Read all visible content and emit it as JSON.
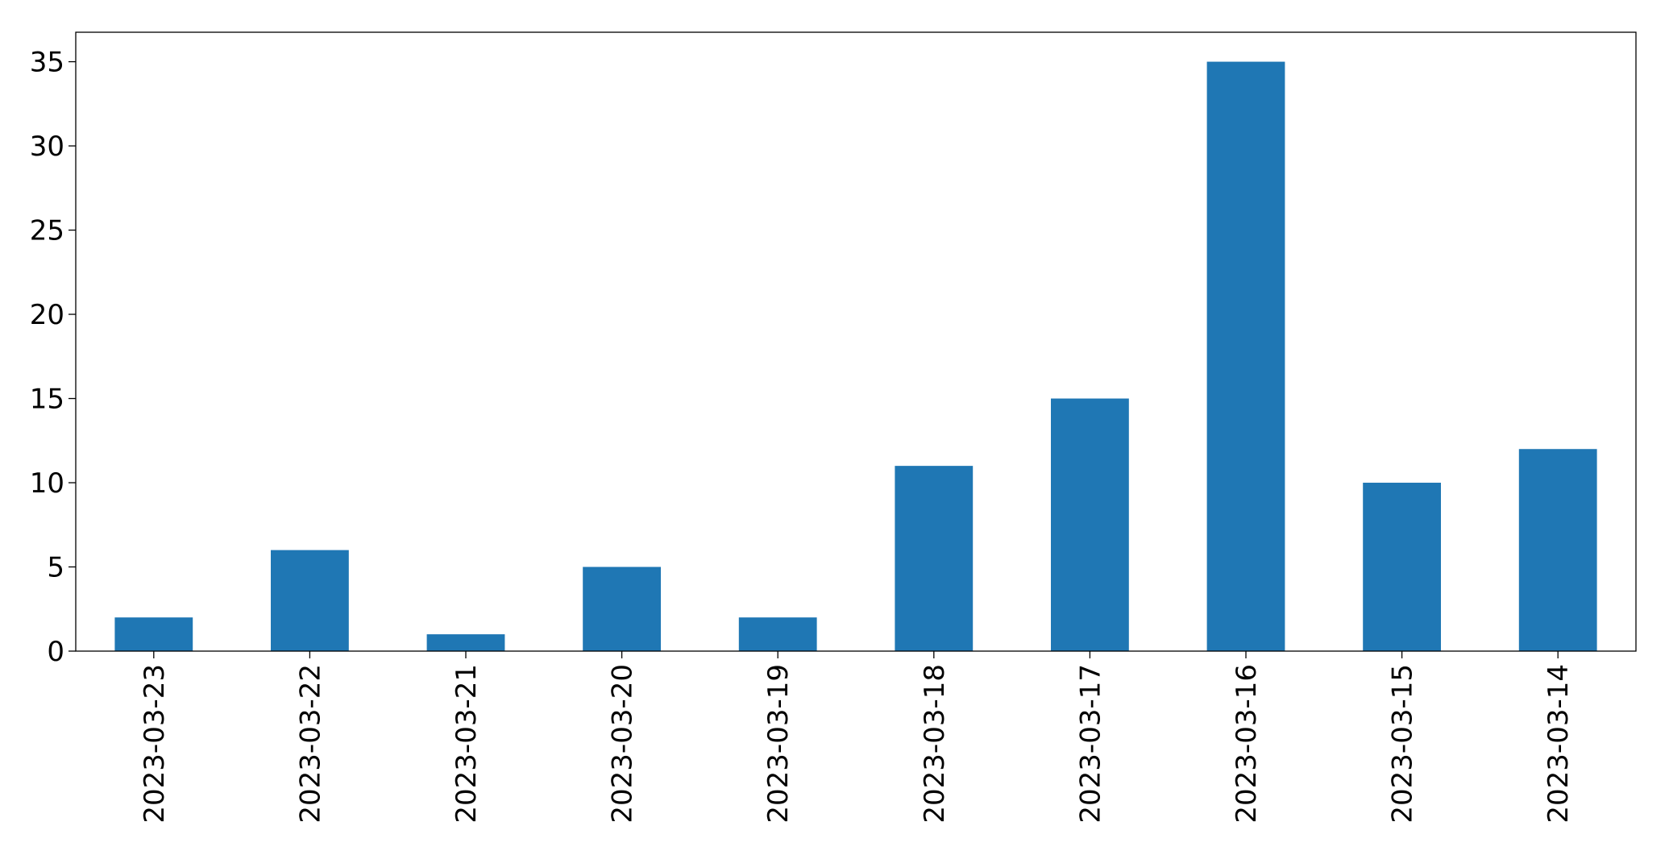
{
  "chart_data": {
    "type": "bar",
    "categories": [
      "2023-03-23",
      "2023-03-22",
      "2023-03-21",
      "2023-03-20",
      "2023-03-19",
      "2023-03-18",
      "2023-03-17",
      "2023-03-16",
      "2023-03-15",
      "2023-03-14"
    ],
    "values": [
      2,
      6,
      1,
      5,
      2,
      11,
      15,
      35,
      10,
      12
    ],
    "color": "#1f77b4",
    "ylim": [
      0,
      36.75
    ],
    "yticks": [
      0,
      5,
      10,
      15,
      20,
      25,
      30,
      35
    ],
    "grid": false
  }
}
